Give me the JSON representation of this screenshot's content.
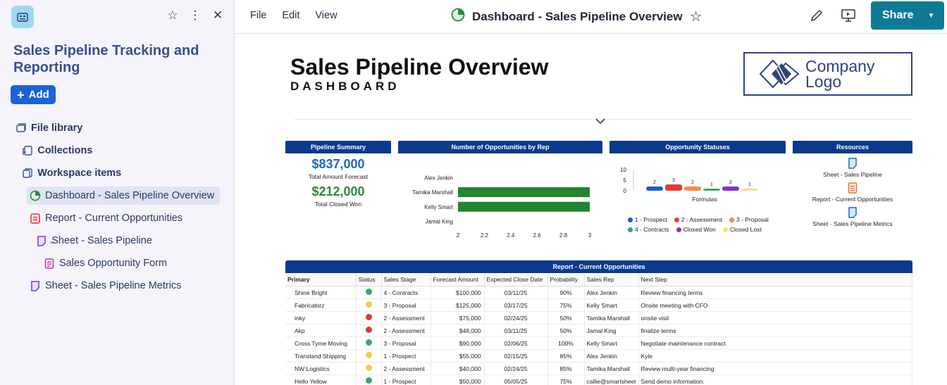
{
  "sidebar": {
    "workspace_title": "Sales Pipeline Tracking and Reporting",
    "add_label": "Add",
    "items": [
      {
        "label": "File library"
      },
      {
        "label": "Collections"
      },
      {
        "label": "Workspace items"
      },
      {
        "label": "Dashboard - Sales Pipeline Overview"
      },
      {
        "label": "Report - Current Opportunities"
      },
      {
        "label": "Sheet - Sales Pipeline"
      },
      {
        "label": "Sales Opportunity Form"
      },
      {
        "label": "Sheet - Sales Pipeline Metrics"
      }
    ]
  },
  "topbar": {
    "menu": [
      "File",
      "Edit",
      "View"
    ],
    "title": "Dashboard - Sales Pipeline Overview",
    "share_label": "Share"
  },
  "dashboard": {
    "title": "Sales Pipeline Overview",
    "subtitle": "DASHBOARD",
    "logo_line1": "Company",
    "logo_line2": "Logo",
    "summary": {
      "header": "Pipeline Summary",
      "forecast_value": "$837,000",
      "forecast_label": "Total Amount Forecast",
      "won_value": "$212,000",
      "won_label": "Total Closed Won"
    },
    "resources": {
      "header": "Resources",
      "items": [
        "Sheet - Sales Pipeline",
        "Report - Current Opportunities",
        "Sheet - Sales Pipeline Metrics"
      ]
    },
    "report": {
      "header": "Report - Current Opportunities",
      "columns": [
        "Primary",
        "Status",
        "Sales Stage",
        "Forecast Amount",
        "Expected Close Date",
        "Probability",
        "Sales Rep",
        "Next Step"
      ],
      "status_colors": {
        "green": "#3aa76d",
        "yellow": "#f4cc4a",
        "red": "#d83a3a"
      },
      "rows": [
        {
          "primary": "Shine Bright",
          "status": "green",
          "stage": "4 - Contracts",
          "amount": "$100,000",
          "date": "03/11/25",
          "prob": "90%",
          "rep": "Alex Jenkin",
          "next": "Review financing terms"
        },
        {
          "primary": "Fabricatorz",
          "status": "yellow",
          "stage": "3 - Proposal",
          "amount": "$125,000",
          "date": "03/17/25",
          "prob": "75%",
          "rep": "Kelly Smart",
          "next": "Onsite meeting with CFO"
        },
        {
          "primary": "inky",
          "status": "red",
          "stage": "2 - Assessment",
          "amount": "$75,000",
          "date": "02/24/25",
          "prob": "50%",
          "rep": "Tamika Marshall",
          "next": "onsite visit"
        },
        {
          "primary": "Akp",
          "status": "red",
          "stage": "2 - Assessment",
          "amount": "$48,000",
          "date": "03/11/25",
          "prob": "50%",
          "rep": "Jamal King",
          "next": "finalize terms"
        },
        {
          "primary": "Cross Tyme Moving",
          "status": "green",
          "stage": "3 - Proposal",
          "amount": "$90,000",
          "date": "02/06/25",
          "prob": "100%",
          "rep": "Kelly Smart",
          "next": "Negotiate maintenance contract"
        },
        {
          "primary": "Transland Shipping",
          "status": "yellow",
          "stage": "1 - Prospect",
          "amount": "$55,000",
          "date": "02/15/25",
          "prob": "85%",
          "rep": "Alex Jenkin",
          "next": "Kyle"
        },
        {
          "primary": "NW Logistics",
          "status": "yellow",
          "stage": "2 - Assessment",
          "amount": "$40,000",
          "date": "02/24/25",
          "prob": "85%",
          "rep": "Tamika Marshall",
          "next": "Review multi-year financing"
        },
        {
          "primary": "Hello Yellow",
          "status": "green",
          "stage": "1 - Prospect",
          "amount": "$50,000",
          "date": "05/05/25",
          "prob": "75%",
          "rep": "callie@smartsheet",
          "next": "Send demo information."
        }
      ]
    }
  },
  "chart_data": [
    {
      "type": "bar",
      "orientation": "horizontal",
      "title": "Number of Opportunities by Rep",
      "categories": [
        "Alex Jenkin",
        "Tamika Marshall",
        "Kelly Smart",
        "Jamal King"
      ],
      "values": [
        2,
        3,
        3,
        2
      ],
      "xlim": [
        2,
        3
      ],
      "xticks": [
        "2",
        "2.2",
        "2.4",
        "2.6",
        "2.8",
        "3"
      ],
      "color": "#22852f"
    },
    {
      "type": "bar",
      "title": "Opportunity Statuses",
      "xlabel": "Formulas",
      "ylim": [
        0,
        10
      ],
      "yticks": [
        "10",
        "5",
        "0"
      ],
      "series": [
        {
          "name": "1 - Prospect",
          "value": 2,
          "color": "#1f5fc2"
        },
        {
          "name": "2 - Assessment",
          "value": 3,
          "color": "#e23b3b"
        },
        {
          "name": "3 - Proposal",
          "value": 2,
          "color": "#f28a4b"
        },
        {
          "name": "4 - Contracts",
          "value": 1,
          "color": "#3aa76d"
        },
        {
          "name": "Closed Won",
          "value": 2,
          "color": "#8e2fbf"
        },
        {
          "name": "Closed Lost",
          "value": 1,
          "color": "#f4e07a"
        }
      ]
    }
  ]
}
